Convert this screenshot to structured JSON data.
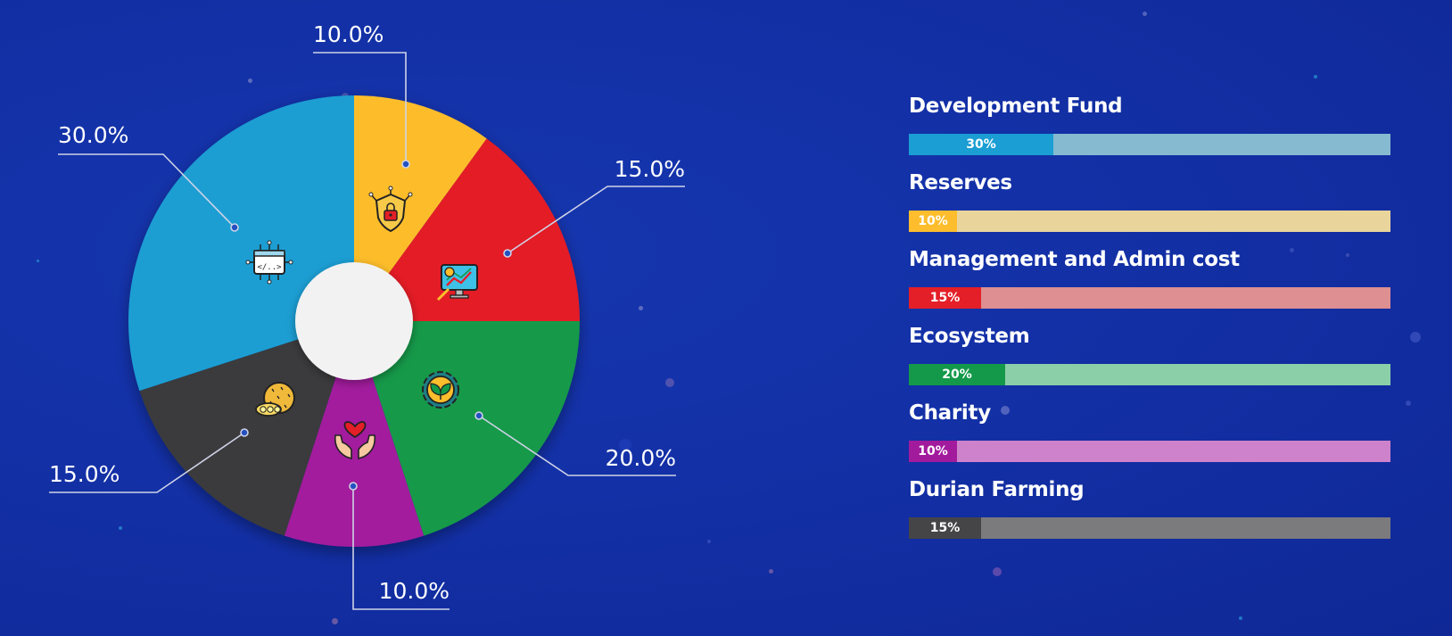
{
  "chart_data": [
    {
      "type": "pie",
      "slices": [
        {
          "label": "10.0%",
          "value": 10,
          "color": "#fdbd2c",
          "icon": "security-shield-lock-icon"
        },
        {
          "label": "15.0%",
          "value": 15,
          "color": "#e41f27",
          "icon": "analytics-monitor-icon"
        },
        {
          "label": "20.0%",
          "value": 20,
          "color": "#14994a",
          "icon": "ecosystem-gear-leaf-icon"
        },
        {
          "label": "10.0%",
          "value": 10,
          "color": "#a21b9d",
          "icon": "charity-hands-heart-icon"
        },
        {
          "label": "15.0%",
          "value": 15,
          "color": "#3a3a3c",
          "icon": "durian-fruit-icon"
        },
        {
          "label": "30.0%",
          "value": 30,
          "color": "#1a9ed3",
          "icon": "development-code-chip-icon"
        }
      ]
    },
    {
      "type": "bar",
      "orientation": "horizontal",
      "xlim": [
        0,
        100
      ],
      "items": [
        {
          "name": "Development Fund",
          "value": 30,
          "label": "30%",
          "fill": "#1a9ed3",
          "track": "#85bad0"
        },
        {
          "name": "Reserves",
          "value": 10,
          "label": "10%",
          "fill": "#fdbd2c",
          "track": "#e9d59c"
        },
        {
          "name": "Management and Admin cost",
          "value": 15,
          "label": "15%",
          "fill": "#e41f27",
          "track": "#dd8f91"
        },
        {
          "name": "Ecosystem",
          "value": 20,
          "label": "20%",
          "fill": "#14994a",
          "track": "#8bcfa8"
        },
        {
          "name": "Charity",
          "value": 10,
          "label": "10%",
          "fill": "#a21b9d",
          "track": "#cf82cc"
        },
        {
          "name": "Durian Farming",
          "value": 15,
          "label": "15%",
          "fill": "#454547",
          "track": "#7b7b7d"
        }
      ]
    }
  ]
}
